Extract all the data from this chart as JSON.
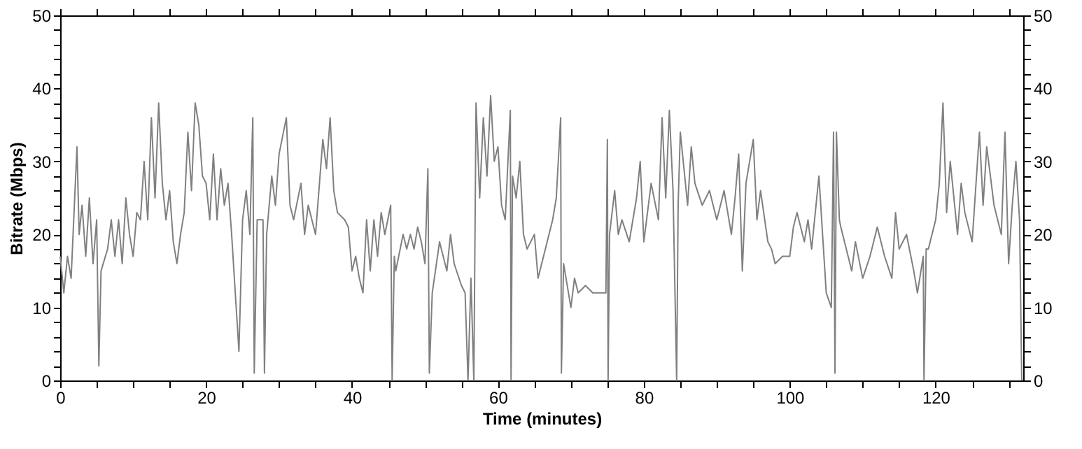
{
  "chart_data": {
    "type": "line",
    "xlabel": "Time (minutes)",
    "ylabel": "Bitrate (Mbps)",
    "x": [
      0,
      0.5,
      1,
      1.5,
      2.3,
      2.6,
      3,
      3.5,
      4,
      4.5,
      5,
      5.3,
      5.6,
      6.5,
      7,
      7.5,
      8,
      8.5,
      9,
      9.5,
      10,
      10.5,
      11,
      11.5,
      12,
      12.5,
      13,
      13.5,
      14,
      14.5,
      15,
      15.5,
      16,
      16.5,
      17,
      17.5,
      18,
      18.5,
      19,
      19.5,
      20,
      20.5,
      21,
      21.5,
      22,
      22.5,
      23,
      23.5,
      24.5,
      25,
      25.5,
      26,
      26.4,
      26.6,
      27,
      27.8,
      28,
      28.3,
      29,
      29.5,
      30,
      31,
      31.5,
      32,
      33,
      33.5,
      34,
      35,
      36,
      36.5,
      37,
      37.5,
      38,
      39,
      39.5,
      40,
      40.5,
      41,
      41.5,
      42,
      42.5,
      43,
      43.5,
      44,
      44.5,
      45.3,
      45.5,
      45.8,
      46,
      47,
      47.5,
      48,
      48.5,
      49,
      49.5,
      50,
      50.4,
      50.6,
      51,
      52,
      53,
      53.5,
      54,
      55,
      55.5,
      55.9,
      56.3,
      56.7,
      57,
      57.5,
      58,
      58.5,
      59,
      59.5,
      60,
      60.5,
      61,
      61.7,
      61.8,
      62,
      62.5,
      63,
      63.5,
      64,
      65,
      65.5,
      66,
      67,
      67.5,
      68,
      68.6,
      68.7,
      69,
      70,
      70.5,
      71,
      72,
      73,
      74,
      74.8,
      75,
      75.1,
      75.3,
      76,
      76.5,
      77,
      78,
      79,
      79.5,
      80,
      81,
      82,
      82.5,
      83,
      83.5,
      84,
      84.5,
      84.7,
      85,
      86,
      86.5,
      87,
      88,
      89,
      90,
      91,
      92,
      92.5,
      93,
      93.5,
      94,
      95,
      95.5,
      96,
      97,
      97.5,
      98,
      99,
      100,
      100.5,
      101,
      102,
      102.5,
      103,
      104,
      104.5,
      105,
      105.7,
      106,
      106.2,
      106.4,
      106.8,
      107,
      108,
      108.5,
      109,
      110,
      111,
      112,
      113,
      114,
      114.5,
      115,
      116,
      117,
      117.5,
      118.3,
      118.4,
      118.7,
      119,
      120,
      120.5,
      121,
      121.5,
      122,
      123,
      123.5,
      124,
      125,
      126,
      126.5,
      127,
      128,
      129,
      129.5,
      130,
      130.5,
      131,
      131.5,
      131.8
    ],
    "series": [
      {
        "color": "#808080",
        "values": [
          17,
          12,
          17,
          14,
          32,
          20,
          24,
          17,
          25,
          16,
          22,
          2,
          15,
          18,
          22,
          17,
          22,
          16,
          25,
          20,
          17,
          23,
          22,
          30,
          22,
          36,
          25,
          38,
          27,
          22,
          26,
          19,
          16,
          20,
          23,
          34,
          26,
          38,
          35,
          28,
          27,
          22,
          31,
          22,
          29,
          24,
          27,
          20,
          4,
          22,
          26,
          20,
          36,
          1,
          22,
          22,
          1,
          20,
          28,
          24,
          31,
          36,
          24,
          22,
          27,
          20,
          24,
          20,
          33,
          29,
          36,
          26,
          23,
          22,
          21,
          15,
          17,
          14,
          12,
          22,
          15,
          22,
          17,
          23,
          20,
          24,
          0,
          17,
          15,
          20,
          18,
          20,
          18,
          21,
          19,
          16,
          29,
          1,
          12,
          19,
          15,
          20,
          16,
          13,
          12,
          0,
          14,
          0,
          38,
          25,
          36,
          28,
          39,
          30,
          32,
          24,
          22,
          37,
          0,
          28,
          25,
          30,
          20,
          18,
          20,
          14,
          16,
          20,
          22,
          25,
          36,
          1,
          16,
          10,
          14,
          12,
          13,
          12,
          12,
          12,
          33,
          0,
          20,
          26,
          20,
          22,
          19,
          25,
          30,
          19,
          27,
          22,
          36,
          25,
          37,
          26,
          0,
          24,
          34,
          24,
          32,
          27,
          24,
          26,
          22,
          26,
          20,
          25,
          31,
          15,
          27,
          33,
          22,
          26,
          19,
          18,
          16,
          17,
          17,
          21,
          23,
          19,
          22,
          18,
          28,
          20,
          12,
          10,
          34,
          1,
          34,
          22,
          21,
          17,
          15,
          19,
          14,
          17,
          21,
          17,
          14,
          23,
          18,
          20,
          15,
          12,
          17,
          0,
          18,
          18,
          22,
          27,
          38,
          23,
          30,
          20,
          27,
          23,
          19,
          34,
          24,
          32,
          24,
          20,
          34,
          16,
          24,
          30,
          22,
          0
        ]
      }
    ],
    "xlim": [
      0,
      132
    ],
    "xticks": [
      0,
      {
        "value": 5,
        "label": null
      },
      {
        "value": 10,
        "label": null
      },
      {
        "value": 15,
        "label": null
      },
      20,
      {
        "value": 25,
        "label": null
      },
      {
        "value": 30,
        "label": null
      },
      {
        "value": 35,
        "label": null
      },
      40,
      {
        "value": 45,
        "label": null
      },
      {
        "value": 50,
        "label": null
      },
      {
        "value": 55,
        "label": null
      },
      60,
      {
        "value": 65,
        "label": null
      },
      {
        "value": 70,
        "label": null
      },
      {
        "value": 75,
        "label": null
      },
      80,
      {
        "value": 85,
        "label": null
      },
      {
        "value": 90,
        "label": null
      },
      {
        "value": 95,
        "label": null
      },
      100,
      {
        "value": 105,
        "label": null
      },
      {
        "value": 110,
        "label": null
      },
      {
        "value": 115,
        "label": null
      },
      120,
      {
        "value": 125,
        "label": null
      },
      {
        "value": 130,
        "label": null
      }
    ],
    "ylim": [
      0,
      50
    ],
    "yticks": [
      0,
      {
        "value": 2,
        "label": null
      },
      {
        "value": 4,
        "label": null
      },
      {
        "value": 6,
        "label": null
      },
      {
        "value": 8,
        "label": null
      },
      10,
      {
        "value": 12,
        "label": null
      },
      {
        "value": 14,
        "label": null
      },
      {
        "value": 16,
        "label": null
      },
      {
        "value": 18,
        "label": null
      },
      20,
      {
        "value": 22,
        "label": null
      },
      {
        "value": 24,
        "label": null
      },
      {
        "value": 26,
        "label": null
      },
      {
        "value": 28,
        "label": null
      },
      30,
      {
        "value": 32,
        "label": null
      },
      {
        "value": 34,
        "label": null
      },
      {
        "value": 36,
        "label": null
      },
      {
        "value": 38,
        "label": null
      },
      40,
      {
        "value": 42,
        "label": null
      },
      {
        "value": 44,
        "label": null
      },
      {
        "value": 46,
        "label": null
      },
      {
        "value": 48,
        "label": null
      },
      50
    ],
    "y2lim": [
      0,
      50
    ],
    "y2ticks": [
      0,
      {
        "value": 2,
        "label": null
      },
      {
        "value": 4,
        "label": null
      },
      {
        "value": 6,
        "label": null
      },
      {
        "value": 8,
        "label": null
      },
      10,
      {
        "value": 12,
        "label": null
      },
      {
        "value": 14,
        "label": null
      },
      {
        "value": 16,
        "label": null
      },
      {
        "value": 18,
        "label": null
      },
      20,
      {
        "value": 22,
        "label": null
      },
      {
        "value": 24,
        "label": null
      },
      {
        "value": 26,
        "label": null
      },
      {
        "value": 28,
        "label": null
      },
      30,
      {
        "value": 32,
        "label": null
      },
      {
        "value": 34,
        "label": null
      },
      {
        "value": 36,
        "label": null
      },
      {
        "value": 38,
        "label": null
      },
      40,
      {
        "value": 42,
        "label": null
      },
      {
        "value": 44,
        "label": null
      },
      {
        "value": 46,
        "label": null
      },
      {
        "value": 48,
        "label": null
      },
      50
    ]
  }
}
